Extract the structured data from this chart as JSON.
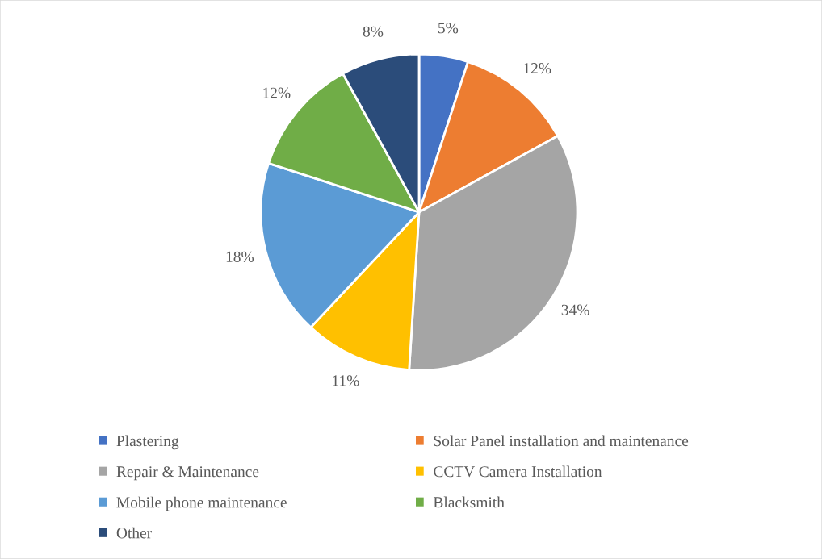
{
  "chart_data": {
    "type": "pie",
    "categories": [
      "Plastering",
      "Solar Panel installation and maintenance",
      "Repair & Maintenance",
      "CCTV Camera Installation",
      "Mobile phone maintenance",
      "Blacksmith",
      "Other"
    ],
    "values": [
      5,
      12,
      34,
      11,
      18,
      12,
      8
    ],
    "colors": [
      "#4472c4",
      "#ed7d31",
      "#a5a5a5",
      "#ffc000",
      "#5b9bd5",
      "#70ad47",
      "#2b4c7a"
    ],
    "value_labels": [
      "5%",
      "12%",
      "34%",
      "11%",
      "18%",
      "12%",
      "8%"
    ],
    "legend": "bottom"
  }
}
